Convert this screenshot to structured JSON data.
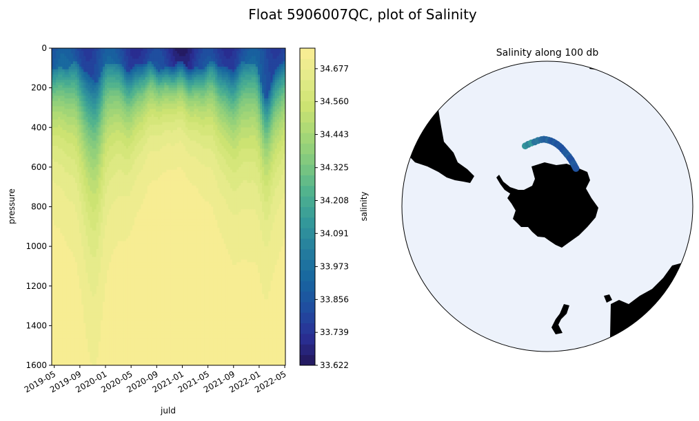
{
  "figure": {
    "suptitle": "Float 5906007QC, plot of Salinity"
  },
  "chart_data": [
    {
      "type": "heatmap",
      "subtype": "filled-contour section",
      "title": "",
      "xlabel": "juld",
      "ylabel": "pressure",
      "x_ticks": [
        "2019-05",
        "2019-09",
        "2020-01",
        "2020-05",
        "2020-09",
        "2021-01",
        "2021-05",
        "2021-09",
        "2022-01",
        "2022-05"
      ],
      "x_range": [
        "2019-04",
        "2022-05"
      ],
      "y_ticks": [
        0,
        200,
        400,
        600,
        800,
        1000,
        1200,
        1400,
        1600
      ],
      "ylim": [
        1600,
        0
      ],
      "y_inverted": true,
      "colorbar": {
        "label": "salinity",
        "ticks": [
          "34.677",
          "34.560",
          "34.443",
          "34.325",
          "34.208",
          "34.091",
          "33.973",
          "33.856",
          "33.739",
          "33.622"
        ],
        "range": [
          33.622,
          34.75
        ],
        "levels": 30,
        "colormap": "YlGnBu_r",
        "stops": [
          "#231758",
          "#2a2f95",
          "#1f4e9f",
          "#17669f",
          "#257e9e",
          "#34999a",
          "#50b28e",
          "#7ec87f",
          "#a6d776",
          "#cde372",
          "#e4eb8a",
          "#fbee95"
        ]
      },
      "section_profile": {
        "description_free": true,
        "surface_min_salinity": 33.65,
        "deep_salinity": 34.74
      }
    },
    {
      "type": "scatter",
      "subtype": "south polar stereographic map",
      "title": "Salinity along 100 db",
      "ocean_color": "#edf2fb",
      "land_color": "#000000",
      "track": {
        "lon": [
          -20,
          -17,
          -14,
          -11,
          -8,
          -5,
          -3,
          -1,
          1,
          3,
          5,
          7,
          9,
          11,
          13,
          15,
          17,
          19,
          21,
          23,
          25,
          27,
          29,
          31,
          33,
          35,
          37
        ],
        "lat": [
          -55.5,
          -55.2,
          -55.0,
          -54.8,
          -54.4,
          -54.2,
          -54.1,
          -54.3,
          -54.6,
          -54.9,
          -55.3,
          -55.8,
          -56.3,
          -56.9,
          -57.5,
          -58.2,
          -58.9,
          -59.5,
          -60.1,
          -60.6,
          -61.2,
          -61.7,
          -62.3,
          -62.8,
          -63.3,
          -63.8,
          -64.2
        ],
        "salinity": [
          34.1,
          34.05,
          34.12,
          33.98,
          34.0,
          33.95,
          33.92,
          33.9,
          33.95,
          33.88,
          33.86,
          33.9,
          33.85,
          33.88,
          33.86,
          33.84,
          33.86,
          33.9,
          33.88,
          33.92,
          33.86,
          33.85,
          33.84,
          33.88,
          33.9,
          33.87,
          33.86
        ]
      }
    }
  ]
}
